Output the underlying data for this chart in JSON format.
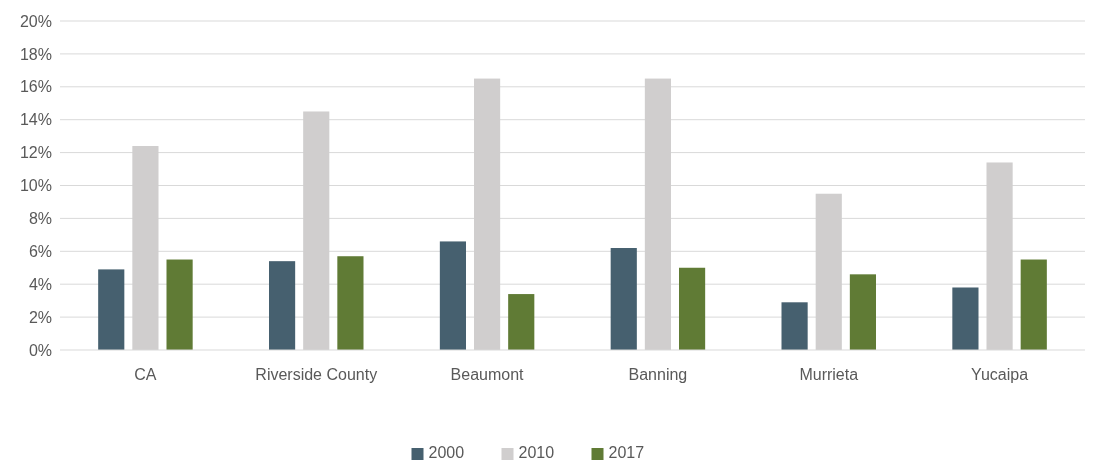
{
  "chart_data": {
    "type": "bar",
    "categories": [
      "CA",
      "Riverside County",
      "Beaumont",
      "Banning",
      "Murrieta",
      "Yucaipa"
    ],
    "series": [
      {
        "name": "2000",
        "color": "#46606f",
        "values": [
          4.9,
          5.4,
          6.6,
          6.2,
          2.9,
          3.8
        ]
      },
      {
        "name": "2010",
        "color": "#d0cece",
        "values": [
          12.4,
          14.5,
          16.5,
          16.5,
          9.5,
          11.4
        ]
      },
      {
        "name": "2017",
        "color": "#607b35",
        "values": [
          5.5,
          5.7,
          3.4,
          5.0,
          4.6,
          5.5
        ]
      }
    ],
    "ylim": [
      0,
      20
    ],
    "yticks": [
      {
        "value": 0,
        "label": "0%"
      },
      {
        "value": 2,
        "label": "2%"
      },
      {
        "value": 4,
        "label": "4%"
      },
      {
        "value": 6,
        "label": "6%"
      },
      {
        "value": 8,
        "label": "8%"
      },
      {
        "value": 10,
        "label": "10%"
      },
      {
        "value": 12,
        "label": "12%"
      },
      {
        "value": 14,
        "label": "14%"
      },
      {
        "value": 16,
        "label": "16%"
      },
      {
        "value": 18,
        "label": "18%"
      },
      {
        "value": 20,
        "label": "20%"
      }
    ],
    "grid": "y",
    "legend": "bottom"
  }
}
